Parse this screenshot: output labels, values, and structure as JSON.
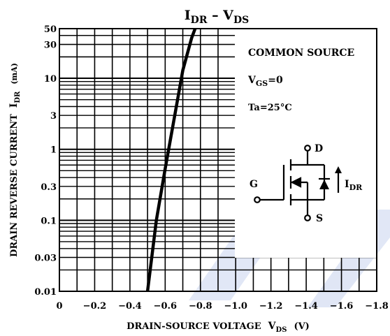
{
  "chart_data": {
    "type": "line",
    "title": {
      "main": "I",
      "sub1": "DR",
      "dash": " – V",
      "sub2": "DS"
    },
    "xlabel": {
      "main": "DRAIN-SOURCE VOLTAGE",
      "sym": "V",
      "sub": "DS",
      "unit": "(V)"
    },
    "ylabel": {
      "main": "DRAIN REVERSE CURRENT",
      "sym": "I",
      "sub": "DR",
      "unit": "(mA)"
    },
    "x_ticks": [
      0,
      -0.2,
      -0.4,
      -0.6,
      -0.8,
      -1.0,
      -1.2,
      -1.4,
      -1.6,
      -1.8
    ],
    "x_tick_labels": [
      "0",
      "−0.2",
      "−0.4",
      "−0.6",
      "−0.8",
      "−1.0",
      "−1.2",
      "−1.4",
      "−1.6",
      "−1.8"
    ],
    "y_ticks": [
      0.01,
      0.03,
      0.1,
      0.3,
      1,
      3,
      10,
      30,
      50
    ],
    "y_tick_labels": [
      "0.01",
      "0.03",
      "0.1",
      "0.3",
      "1",
      "3",
      "10",
      "30",
      "50"
    ],
    "xlim": [
      0,
      -1.8
    ],
    "ylim": [
      0.01,
      50
    ],
    "y_scale": "log",
    "grid": true,
    "series": [
      {
        "x": [
          -0.5,
          -0.55,
          -0.6,
          -0.65,
          -0.7,
          -0.75,
          -0.77
        ],
        "y": [
          0.01,
          0.1,
          0.53,
          2.6,
          13,
          37,
          50
        ]
      }
    ],
    "annotation": {
      "line1": "COMMON SOURCE",
      "vgs_sym": "V",
      "vgs_sub": "GS",
      "vgs_val": "=0",
      "ta": "Ta=25°C"
    },
    "circuit": {
      "drain": "D",
      "gate": "G",
      "source": "S",
      "current_sym": "I",
      "current_sub": "DR"
    },
    "watermark_color": "#c8d3ee"
  }
}
